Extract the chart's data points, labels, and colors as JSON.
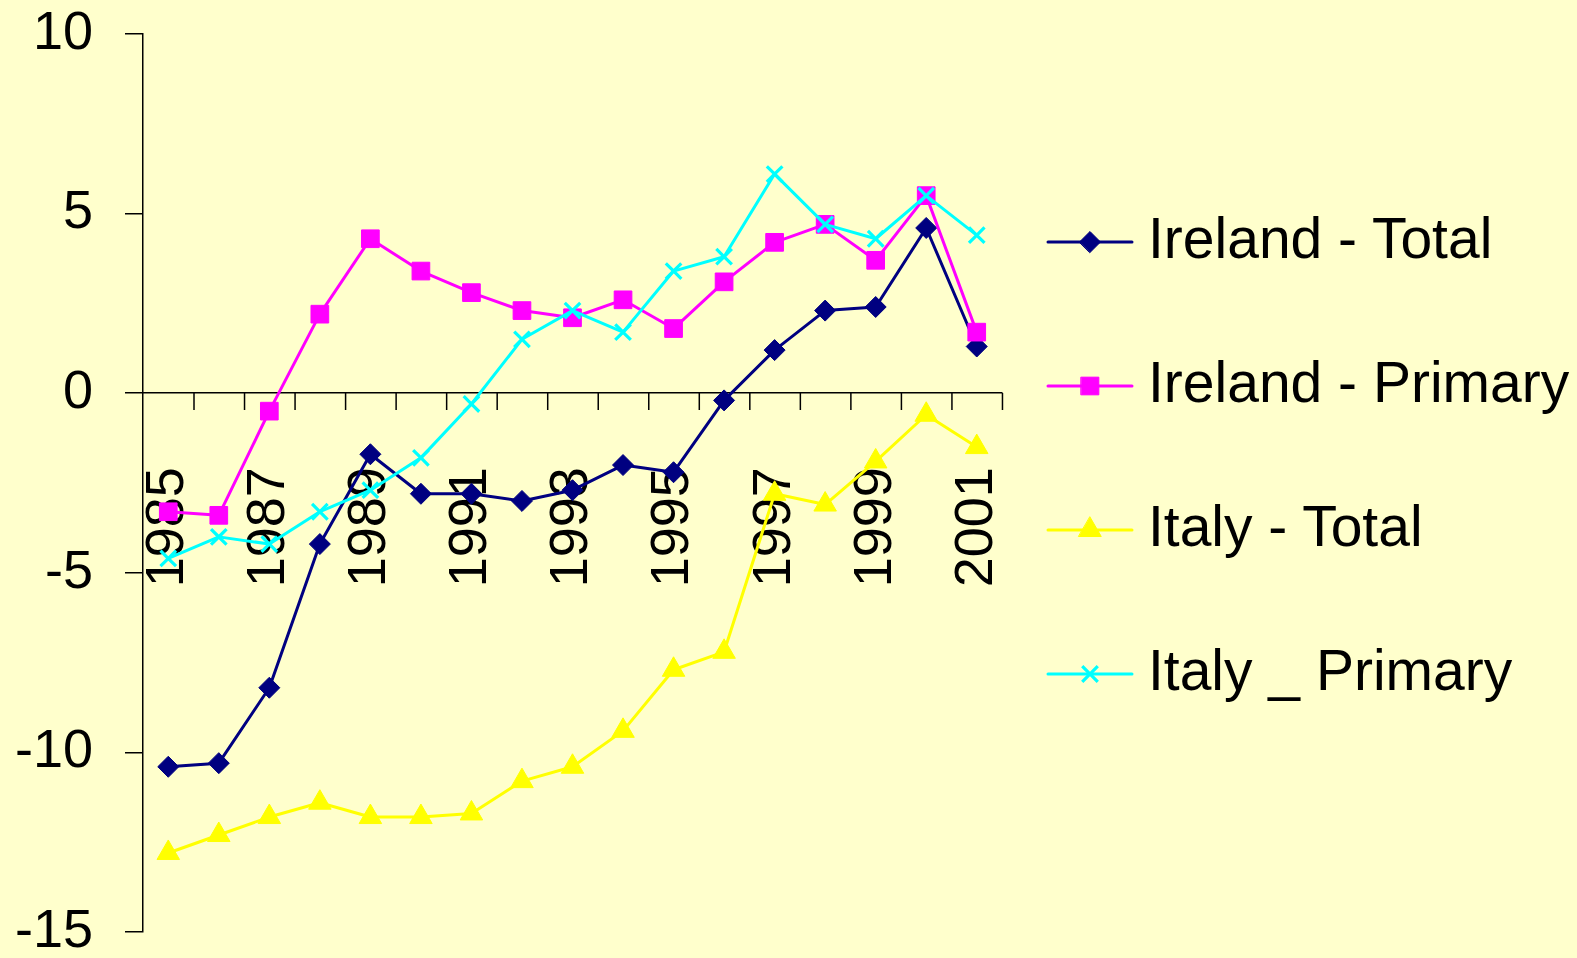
{
  "chart_data": {
    "type": "line",
    "categories": [
      "1985",
      null,
      "1987",
      null,
      "1989",
      null,
      "1991",
      null,
      "1993",
      null,
      "1995",
      null,
      "1997",
      null,
      "1999",
      null,
      "2001"
    ],
    "series": [
      {
        "name": "Ireland - Total",
        "color": "#000080",
        "marker": "diamond",
        "values": [
          -10.4,
          -10.3,
          -8.2,
          -4.2,
          -1.7,
          -2.8,
          -2.8,
          -3.0,
          -2.7,
          -2.0,
          -2.2,
          -0.2,
          1.2,
          2.3,
          2.4,
          4.6,
          1.3
        ]
      },
      {
        "name": "Ireland - Primary",
        "color": "#ff00ff",
        "marker": "square",
        "values": [
          -3.3,
          -3.4,
          -0.5,
          2.2,
          4.3,
          3.4,
          2.8,
          2.3,
          2.1,
          2.6,
          1.8,
          3.1,
          4.2,
          4.7,
          3.7,
          5.5,
          1.7
        ]
      },
      {
        "name": "Italy - Total",
        "color": "#ffff00",
        "marker": "triangle",
        "values": [
          -12.8,
          -12.3,
          -11.8,
          -11.4,
          -11.8,
          -11.8,
          -11.7,
          -10.8,
          -10.4,
          -9.4,
          -7.7,
          -7.2,
          -2.8,
          -3.1,
          -1.9,
          -0.6,
          -1.5
        ]
      },
      {
        "name": "Italy _ Primary",
        "color": "#00ffff",
        "marker": "cross",
        "values": [
          -4.6,
          -4.0,
          -4.2,
          -3.3,
          -2.7,
          -1.8,
          -0.3,
          1.5,
          2.3,
          1.7,
          3.4,
          3.8,
          6.1,
          4.7,
          4.3,
          5.5,
          4.4
        ]
      }
    ],
    "ylim": [
      -15,
      10
    ],
    "yticks": [
      -15,
      -10,
      -5,
      0,
      5,
      10
    ],
    "legend": "right"
  }
}
